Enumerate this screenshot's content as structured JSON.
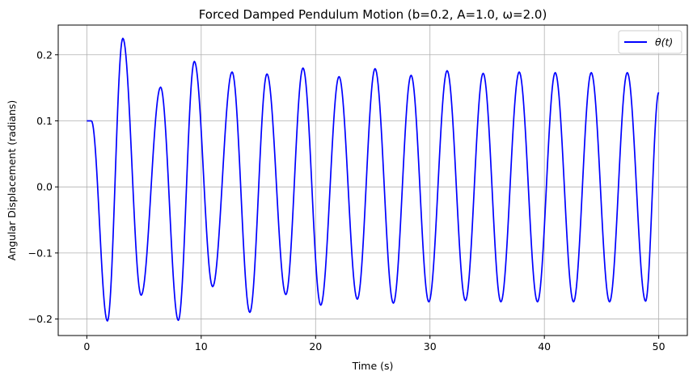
{
  "chart_data": {
    "type": "line",
    "title": "Forced Damped Pendulum Motion (b=0.2, A=1.0, ω=2.0)",
    "xlabel": "Time (s)",
    "ylabel": "Angular Displacement (radians)",
    "xlim": [
      -2.5,
      52.5
    ],
    "ylim": [
      -0.225,
      0.245
    ],
    "xticks": [
      0,
      10,
      20,
      30,
      40,
      50
    ],
    "xtick_labels": [
      "0",
      "10",
      "20",
      "30",
      "40",
      "50"
    ],
    "yticks": [
      -0.2,
      -0.1,
      0.0,
      0.1,
      0.2
    ],
    "ytick_labels": [
      "−0.2",
      "−0.1",
      "0.0",
      "0.1",
      "0.2"
    ],
    "grid": true,
    "legend_position": "top-right",
    "series": [
      {
        "name": "θ(t)",
        "color": "#0000ff",
        "x": [
          0.0,
          0.4,
          1.8,
          3.15,
          4.75,
          6.45,
          8.0,
          9.4,
          11.0,
          12.7,
          14.25,
          15.75,
          17.4,
          18.9,
          20.45,
          22.05,
          23.65,
          25.2,
          26.8,
          28.35,
          29.9,
          31.5,
          33.1,
          34.65,
          36.2,
          37.8,
          39.4,
          40.95,
          42.55,
          44.1,
          45.7,
          47.25,
          48.85,
          50.0
        ],
        "y": [
          0.1,
          0.1,
          -0.203,
          0.225,
          -0.164,
          0.151,
          -0.202,
          0.19,
          -0.151,
          0.174,
          -0.19,
          0.171,
          -0.163,
          0.18,
          -0.179,
          0.167,
          -0.17,
          0.179,
          -0.176,
          0.169,
          -0.174,
          0.176,
          -0.172,
          0.172,
          -0.174,
          0.174,
          -0.174,
          0.173,
          -0.174,
          0.173,
          -0.174,
          0.173,
          -0.173,
          0.143
        ]
      }
    ]
  }
}
